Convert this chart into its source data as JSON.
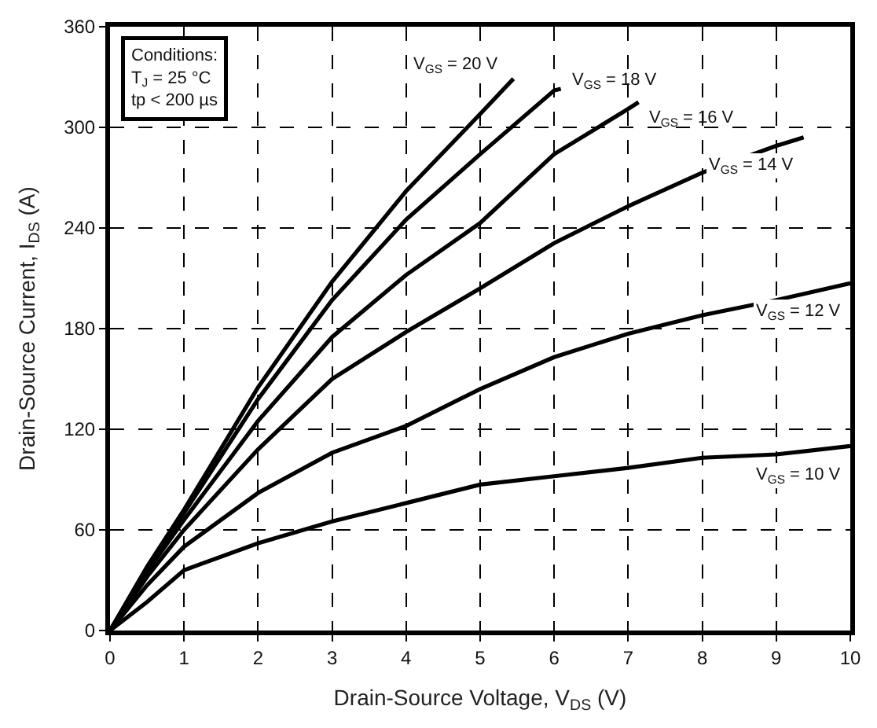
{
  "chart_data": {
    "type": "line",
    "xlabel": "Drain-Source Voltage, V$_{DS}$ (V)",
    "ylabel": "Drain-Source Current, I$_{DS}$ (A)",
    "xlim": [
      0,
      10
    ],
    "xticks": [
      0,
      1,
      2,
      3,
      4,
      5,
      6,
      7,
      8,
      9,
      10
    ],
    "ylim": [
      0,
      360
    ],
    "yticks": [
      0,
      60,
      120,
      180,
      240,
      300,
      360
    ],
    "grid": true,
    "legend": false,
    "marker": "none",
    "line_style": "solid",
    "series": [
      {
        "name": "V$_{GS}$ = 10 V",
        "color": "#000000",
        "x": [
          0,
          0.5,
          1,
          2,
          3,
          4,
          5,
          6,
          7,
          8,
          9,
          10
        ],
        "values": [
          0,
          17,
          36,
          52,
          65,
          76,
          87,
          92,
          97,
          103,
          105,
          110
        ]
      },
      {
        "name": "V$_{GS}$ = 12 V",
        "color": "#000000",
        "x": [
          0,
          0.5,
          1,
          2,
          3,
          4,
          5,
          6,
          7,
          8,
          9,
          10
        ],
        "values": [
          0,
          27,
          50,
          82,
          106,
          122,
          144,
          163,
          177,
          188,
          197,
          207
        ]
      },
      {
        "name": "V$_{GS}$ = 14 V",
        "color": "#000000",
        "x": [
          0,
          0.5,
          1,
          2,
          3,
          4,
          5,
          6,
          7,
          8,
          9,
          9.37
        ],
        "values": [
          0,
          32,
          60,
          108,
          150,
          178,
          204,
          231,
          253,
          273,
          289,
          294
        ]
      },
      {
        "name": "V$_{GS}$ = 16 V",
        "color": "#000000",
        "x": [
          0,
          0.5,
          1,
          2,
          3,
          4,
          5,
          6,
          7,
          7.14
        ],
        "values": [
          0,
          35,
          66,
          125,
          175,
          212,
          243,
          284,
          311,
          315
        ]
      },
      {
        "name": "V$_{GS}$ = 18 V",
        "color": "#000000",
        "x": [
          0,
          0.5,
          1,
          2,
          3,
          4,
          5,
          6,
          6.09
        ],
        "values": [
          0,
          37,
          70,
          138,
          197,
          245,
          284,
          322,
          323
        ]
      },
      {
        "name": "V$_{GS}$ = 20 V",
        "color": "#000000",
        "x": [
          0,
          0.5,
          1,
          2,
          3,
          4,
          5,
          5.45
        ],
        "values": [
          0,
          38,
          72,
          145,
          208,
          262,
          308,
          329
        ]
      }
    ],
    "annotations": [
      "Conditions:\nT$_{J}$ = 25 °C\ntp < 200 µs"
    ]
  }
}
